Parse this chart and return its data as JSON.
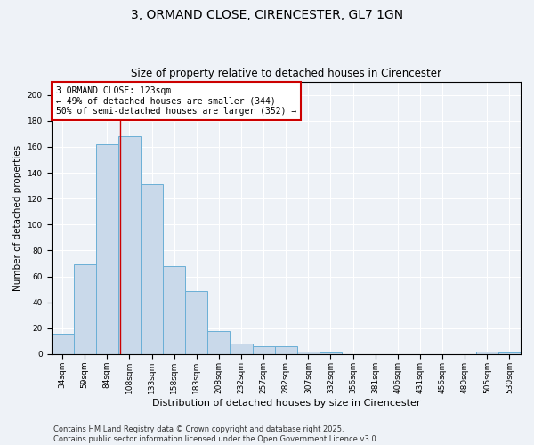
{
  "title": "3, ORMAND CLOSE, CIRENCESTER, GL7 1GN",
  "subtitle": "Size of property relative to detached houses in Cirencester",
  "xlabel": "Distribution of detached houses by size in Cirencester",
  "ylabel": "Number of detached properties",
  "categories": [
    "34sqm",
    "59sqm",
    "84sqm",
    "108sqm",
    "133sqm",
    "158sqm",
    "183sqm",
    "208sqm",
    "232sqm",
    "257sqm",
    "282sqm",
    "307sqm",
    "332sqm",
    "356sqm",
    "381sqm",
    "406sqm",
    "431sqm",
    "456sqm",
    "480sqm",
    "505sqm",
    "530sqm"
  ],
  "values": [
    16,
    69,
    162,
    168,
    131,
    68,
    49,
    18,
    8,
    6,
    6,
    2,
    1,
    0,
    0,
    0,
    0,
    0,
    0,
    2,
    1
  ],
  "bar_color": "#c9d9ea",
  "bar_edge_color": "#6aafd6",
  "vline_x": 2.6,
  "subject_label": "3 ORMAND CLOSE: 123sqm",
  "annotation_line1": "← 49% of detached houses are smaller (344)",
  "annotation_line2": "50% of semi-detached houses are larger (352) →",
  "annotation_box_color": "#ffffff",
  "annotation_box_edge": "#cc0000",
  "vline_color": "#cc0000",
  "ylim": [
    0,
    210
  ],
  "yticks": [
    0,
    20,
    40,
    60,
    80,
    100,
    120,
    140,
    160,
    180,
    200
  ],
  "footer": "Contains HM Land Registry data © Crown copyright and database right 2025.\nContains public sector information licensed under the Open Government Licence v3.0.",
  "background_color": "#eef2f7",
  "grid_color": "#ffffff",
  "title_fontsize": 10,
  "subtitle_fontsize": 8.5,
  "xlabel_fontsize": 8,
  "ylabel_fontsize": 7.5,
  "tick_fontsize": 6.5,
  "annotation_fontsize": 7,
  "footer_fontsize": 6
}
